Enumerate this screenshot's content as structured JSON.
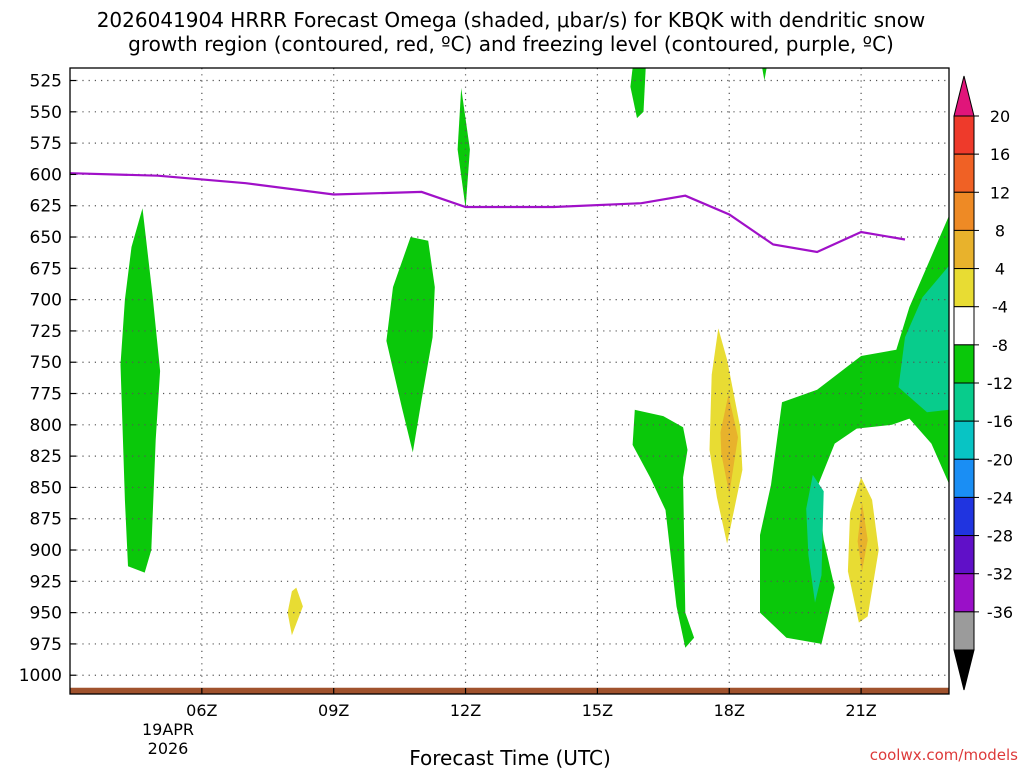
{
  "chart_data": {
    "type": "time-height",
    "title_line1": "2026041904 HRRR Forecast Omega (shaded, μbar/s) for KBQK with dendritic snow",
    "title_line2": "growth region (contoured, red, ºC) and freezing level (contoured, purple, ºC)",
    "xlabel": "Forecast Time (UTC)",
    "x_unit": "forecast hour",
    "xlim": [
      3,
      23
    ],
    "x_ticks": [
      {
        "value": 6,
        "label": "06Z"
      },
      {
        "value": 9,
        "label": "09Z"
      },
      {
        "value": 12,
        "label": "12Z"
      },
      {
        "value": 15,
        "label": "15Z"
      },
      {
        "value": 18,
        "label": "18Z"
      },
      {
        "value": 21,
        "label": "21Z"
      }
    ],
    "date_label": [
      "19APR",
      "2026"
    ],
    "y_unit": "hPa",
    "ylim": [
      515,
      1015
    ],
    "y_ticks": [
      525,
      550,
      575,
      600,
      625,
      650,
      675,
      700,
      725,
      750,
      775,
      800,
      825,
      850,
      875,
      900,
      925,
      950,
      975,
      1000
    ],
    "colorbar": {
      "labels": [
        "20",
        "16",
        "12",
        "8",
        "4",
        "-4",
        "-8",
        "-12",
        "-16",
        "-20",
        "-24",
        "-28",
        "-32",
        "-36"
      ],
      "colors": [
        "#e0157a",
        "#ee3a2b",
        "#f06125",
        "#ee8a25",
        "#e8b22c",
        "#e8dc33",
        "#ffffff",
        "#0ac80a",
        "#08cc8c",
        "#08c4c4",
        "#1a8ef4",
        "#2034e0",
        "#6010c8",
        "#9a10c8",
        "#9b9b9b",
        "#000000"
      ]
    },
    "freezing_level": {
      "color": "#a010c8",
      "points": [
        [
          3,
          599
        ],
        [
          5,
          601
        ],
        [
          7,
          607
        ],
        [
          9,
          616
        ],
        [
          11,
          614
        ],
        [
          12,
          626
        ],
        [
          14,
          626
        ],
        [
          16,
          623
        ],
        [
          17,
          617
        ],
        [
          18,
          632
        ],
        [
          19,
          656
        ],
        [
          20,
          662
        ],
        [
          21,
          646
        ],
        [
          22,
          652
        ]
      ]
    },
    "omega_regions": [
      {
        "value": "-4 to -8",
        "color": "#0ac80a",
        "points": [
          [
            4.65,
            627
          ],
          [
            4.88,
            697
          ],
          [
            5.05,
            757
          ],
          [
            4.95,
            812
          ],
          [
            4.85,
            900
          ],
          [
            4.7,
            918
          ],
          [
            4.32,
            913
          ],
          [
            4.25,
            860
          ],
          [
            4.15,
            752
          ],
          [
            4.25,
            700
          ],
          [
            4.4,
            658
          ]
        ]
      },
      {
        "value": "-4 to -8",
        "color": "#0ac80a",
        "points": [
          [
            11.9,
            531
          ],
          [
            12.1,
            580
          ],
          [
            12.0,
            627
          ],
          [
            11.82,
            580
          ]
        ]
      },
      {
        "value": "-4 to -8",
        "color": "#0ac80a",
        "points": [
          [
            10.75,
            650
          ],
          [
            11.15,
            653
          ],
          [
            11.3,
            690
          ],
          [
            11.25,
            730
          ],
          [
            11.0,
            780
          ],
          [
            10.8,
            822
          ],
          [
            10.55,
            786
          ],
          [
            10.2,
            733
          ],
          [
            10.35,
            690
          ]
        ]
      },
      {
        "value": "-4 to -8",
        "color": "#0ac80a",
        "points": [
          [
            15.8,
            515
          ],
          [
            16.1,
            515
          ],
          [
            16.05,
            550
          ],
          [
            15.9,
            555
          ],
          [
            15.75,
            530
          ]
        ]
      },
      {
        "value": "-4 to -8",
        "color": "#0ac80a",
        "points": [
          [
            18.75,
            515
          ],
          [
            18.85,
            515
          ],
          [
            18.8,
            525
          ]
        ]
      },
      {
        "value": "-4 to -8",
        "color": "#0ac80a",
        "points": [
          [
            15.85,
            788
          ],
          [
            16.5,
            793
          ],
          [
            16.95,
            802
          ],
          [
            17.05,
            820
          ],
          [
            16.95,
            842
          ],
          [
            17.0,
            950
          ],
          [
            17.2,
            970
          ],
          [
            17.0,
            978
          ],
          [
            16.8,
            945
          ],
          [
            16.55,
            868
          ],
          [
            16.2,
            842
          ],
          [
            15.8,
            816
          ]
        ]
      },
      {
        "value": "-4 to -8",
        "color": "#0ac80a",
        "points": [
          [
            23,
            633
          ],
          [
            22.1,
            706
          ],
          [
            21.8,
            740
          ],
          [
            21.0,
            745
          ],
          [
            20.0,
            772
          ],
          [
            19.2,
            782
          ],
          [
            18.95,
            848
          ],
          [
            18.7,
            888
          ],
          [
            18.7,
            950
          ],
          [
            19.3,
            970
          ],
          [
            20.1,
            975
          ],
          [
            20.4,
            930
          ],
          [
            20.15,
            892
          ],
          [
            20.0,
            850
          ],
          [
            20.4,
            815
          ],
          [
            20.9,
            803
          ],
          [
            21.7,
            800
          ],
          [
            22.1,
            795
          ],
          [
            22.6,
            815
          ],
          [
            23,
            847
          ]
        ]
      },
      {
        "value": "-8 to -12",
        "color": "#08cc8c",
        "points": [
          [
            23,
            673
          ],
          [
            22.4,
            698
          ],
          [
            22.0,
            730
          ],
          [
            21.85,
            770
          ],
          [
            22.5,
            790
          ],
          [
            23,
            788
          ]
        ]
      },
      {
        "value": "-8 to -12",
        "color": "#08cc8c",
        "points": [
          [
            19.75,
            867
          ],
          [
            19.9,
            840
          ],
          [
            20.15,
            853
          ],
          [
            20.1,
            920
          ],
          [
            19.95,
            942
          ],
          [
            19.8,
            904
          ]
        ]
      },
      {
        "value": "4 to 8",
        "color": "#e8dc33",
        "points": [
          [
            17.75,
            723
          ],
          [
            17.95,
            748
          ],
          [
            18.25,
            802
          ],
          [
            18.3,
            836
          ],
          [
            17.95,
            895
          ],
          [
            17.72,
            858
          ],
          [
            17.55,
            820
          ],
          [
            17.6,
            760
          ]
        ]
      },
      {
        "value": "8 to 12",
        "color": "#e8b22c",
        "points": [
          [
            17.98,
            776
          ],
          [
            18.2,
            810
          ],
          [
            18.0,
            855
          ],
          [
            17.82,
            823
          ],
          [
            17.8,
            806
          ]
        ]
      },
      {
        "value": "4 to 8",
        "color": "#e8dc33",
        "points": [
          [
            21.0,
            842
          ],
          [
            21.25,
            860
          ],
          [
            21.4,
            900
          ],
          [
            21.15,
            953
          ],
          [
            20.95,
            958
          ],
          [
            20.7,
            917
          ],
          [
            20.75,
            870
          ]
        ]
      },
      {
        "value": "8 to 12",
        "color": "#e8b22c",
        "points": [
          [
            21.02,
            862
          ],
          [
            21.15,
            892
          ],
          [
            21.02,
            917
          ],
          [
            20.92,
            893
          ]
        ]
      },
      {
        "value": "4 to 8",
        "color": "#e8dc33",
        "points": [
          [
            8.15,
            930
          ],
          [
            8.3,
            945
          ],
          [
            8.05,
            968
          ],
          [
            7.95,
            950
          ],
          [
            8.05,
            933
          ]
        ]
      }
    ],
    "terrain": {
      "color": "#a0522d",
      "top_hpa": 1010
    }
  },
  "credit": "coolwx.com/models"
}
